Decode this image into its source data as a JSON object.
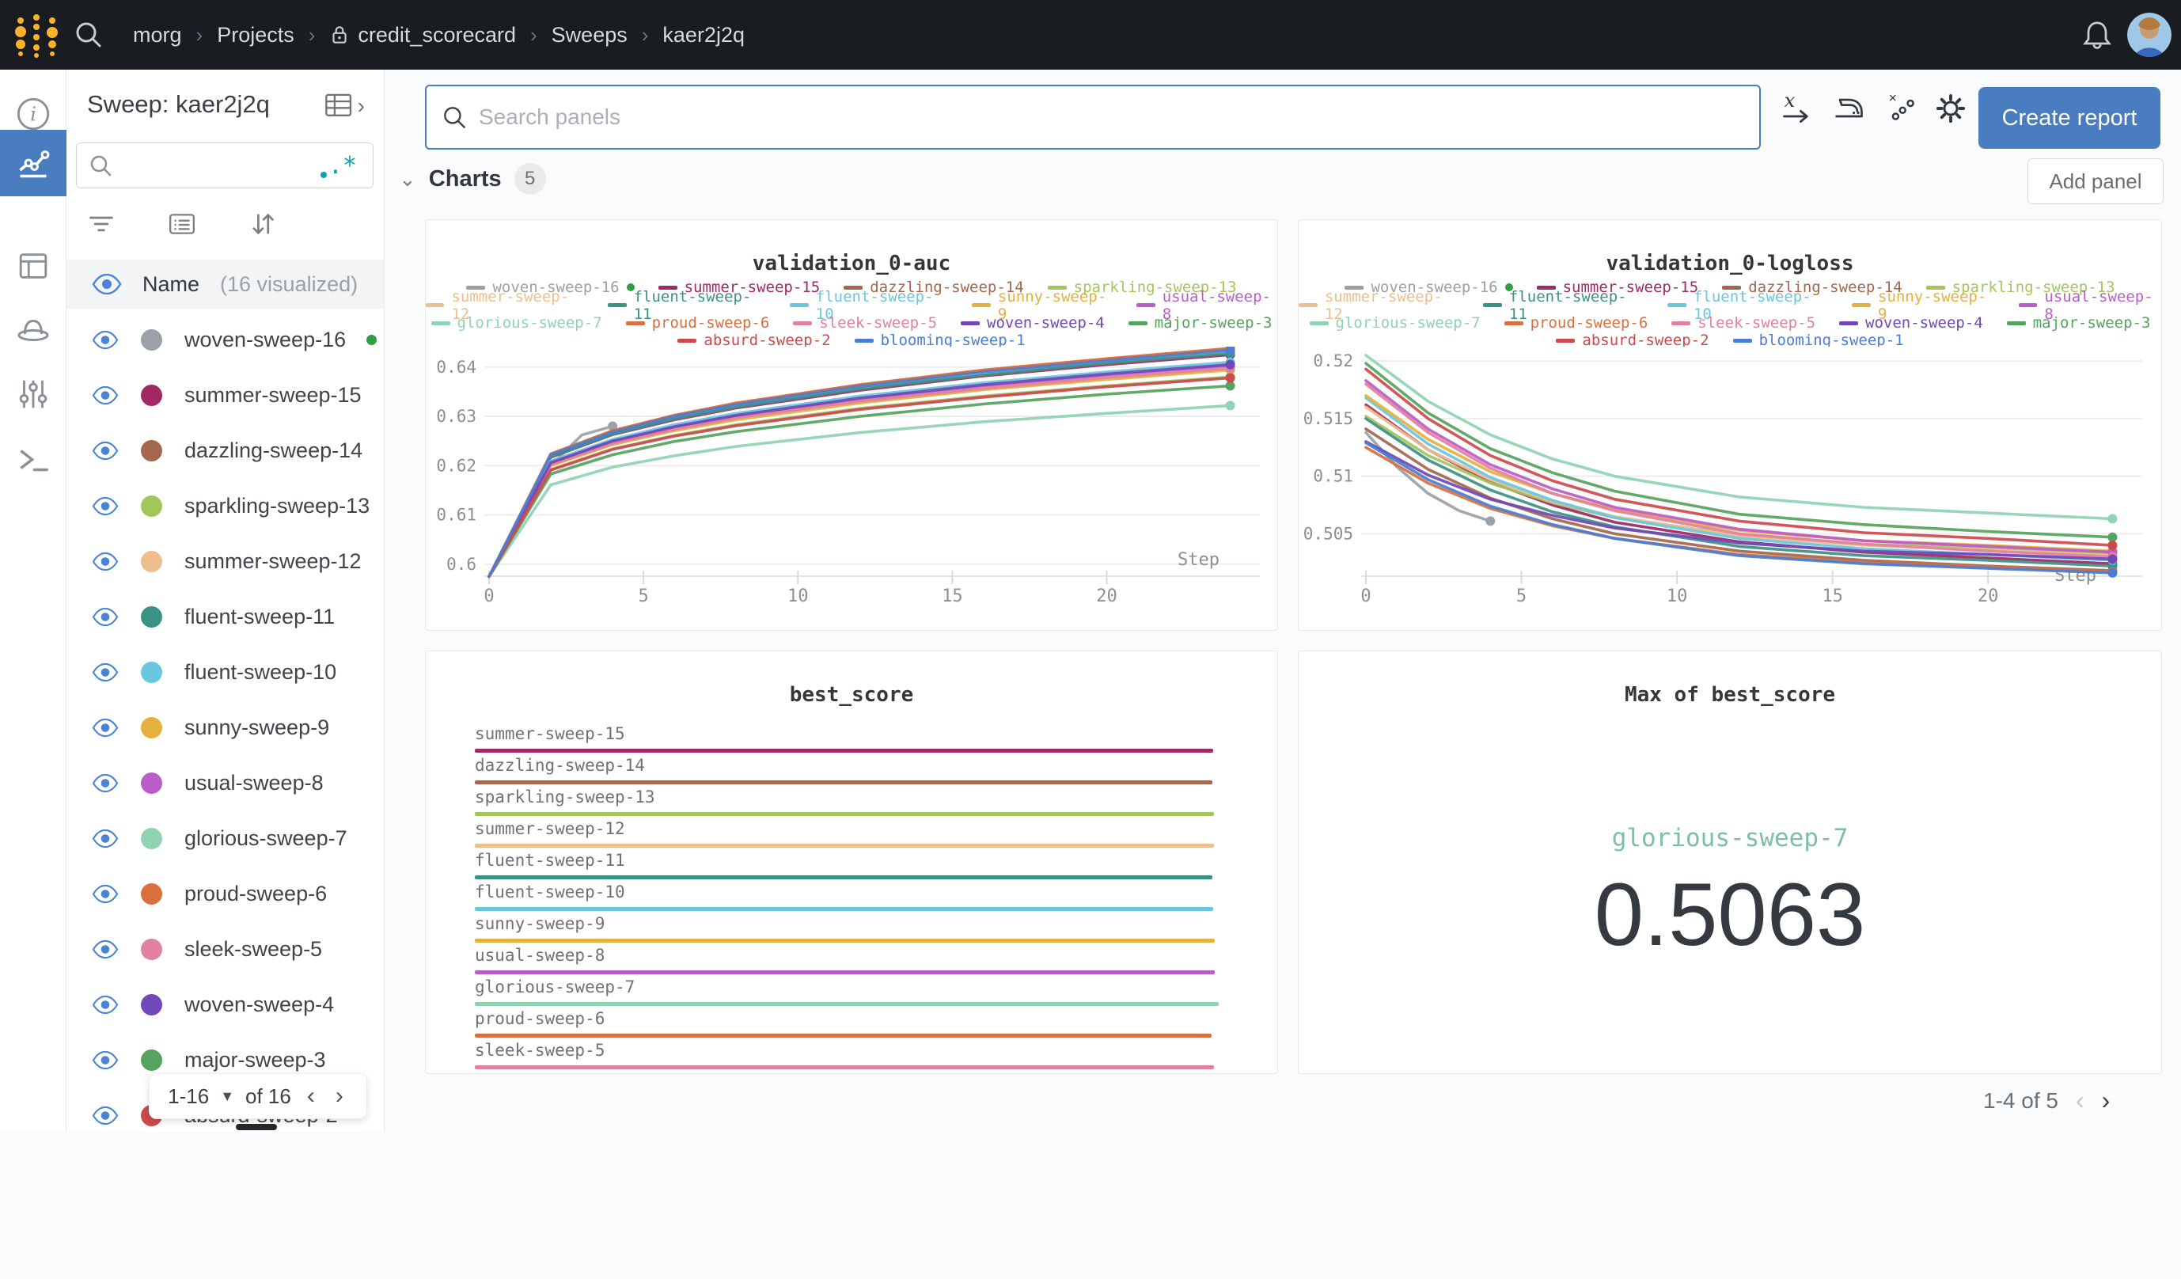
{
  "topbar": {
    "breadcrumb": [
      "morg",
      "Projects",
      "credit_scorecard",
      "Sweeps",
      "kaer2j2q"
    ],
    "lock_on_index": 2
  },
  "left_rail": {
    "items": [
      "overview",
      "charts",
      "table",
      "sweeps",
      "parameters",
      "logs"
    ],
    "active": "charts"
  },
  "sidebar": {
    "title": "Sweep: kaer2j2q",
    "search_placeholder": "",
    "header": {
      "name_label": "Name",
      "visualized_label": "(16 visualized)"
    },
    "runs": [
      {
        "name": "woven-sweep-16",
        "color": "#9aa1a8",
        "running": true
      },
      {
        "name": "summer-sweep-15",
        "color": "#a02963",
        "running": false
      },
      {
        "name": "dazzling-sweep-14",
        "color": "#a3674e",
        "running": false
      },
      {
        "name": "sparkling-sweep-13",
        "color": "#a3c65a",
        "running": false
      },
      {
        "name": "summer-sweep-12",
        "color": "#eebe8e",
        "running": false
      },
      {
        "name": "fluent-sweep-11",
        "color": "#3a9285",
        "running": false
      },
      {
        "name": "fluent-sweep-10",
        "color": "#6bc6e0",
        "running": false
      },
      {
        "name": "sunny-sweep-9",
        "color": "#e4b13f",
        "running": false
      },
      {
        "name": "usual-sweep-8",
        "color": "#bb5dc8",
        "running": false
      },
      {
        "name": "glorious-sweep-7",
        "color": "#90d3b2",
        "running": false
      },
      {
        "name": "proud-sweep-6",
        "color": "#d9703f",
        "running": false
      },
      {
        "name": "sleek-sweep-5",
        "color": "#e2819f",
        "running": false
      },
      {
        "name": "woven-sweep-4",
        "color": "#7048b8",
        "running": false
      },
      {
        "name": "major-sweep-3",
        "color": "#56a25f",
        "running": false
      },
      {
        "name": "absurd-sweep-2",
        "color": "#cd4a4c",
        "running": false
      },
      {
        "name": "blooming-sweep-1",
        "color": "#4a7dd4",
        "running": false
      }
    ],
    "pagination": {
      "range": "1-16",
      "of": "of 16"
    }
  },
  "main": {
    "search": {
      "placeholder": "Search panels"
    },
    "create_report_label": "Create report",
    "section": {
      "label": "Charts",
      "count": "5",
      "add_panel_label": "Add panel"
    },
    "pagination": {
      "text": "1-4 of 5"
    }
  },
  "colors": {
    "accent_blue": "#4a7dc0",
    "running_green": "#2f9e44",
    "logo_gold": "#fcb32b",
    "topbar_bg": "#191c20"
  },
  "chart_data": [
    {
      "type": "line",
      "title": "validation_0-auc",
      "xlabel": "Step",
      "x_ticks": [
        0,
        5,
        10,
        15,
        20
      ],
      "y_ticks": [
        0.6,
        0.61,
        0.62,
        0.63,
        0.64
      ],
      "y_tick_labels": [
        "0.6",
        "0.61",
        "0.62",
        "0.63",
        "0.64"
      ],
      "y_domain": [
        0.595,
        0.6435
      ],
      "x_domain": [
        0,
        24.6
      ],
      "legend_rows": [
        4,
        5,
        5,
        2
      ],
      "series": [
        {
          "name": "woven-sweep-16",
          "x": [
            0,
            1,
            2,
            3,
            4
          ],
          "y": [
            0.5975,
            0.609,
            0.62,
            0.6262,
            0.628
          ]
        },
        {
          "name": "summer-sweep-15",
          "x": [
            0,
            2,
            4,
            6,
            8,
            12,
            16,
            20,
            24
          ],
          "y": [
            0.5975,
            0.6217,
            0.6263,
            0.6293,
            0.6317,
            0.6353,
            0.6382,
            0.6405,
            0.6425
          ]
        },
        {
          "name": "dazzling-sweep-14",
          "x": [
            0,
            2,
            4,
            6,
            8,
            12,
            16,
            20,
            24
          ],
          "y": [
            0.5975,
            0.6223,
            0.627,
            0.6302,
            0.6326,
            0.6364,
            0.6393,
            0.6416,
            0.6437
          ]
        },
        {
          "name": "sparkling-sweep-13",
          "x": [
            0,
            2,
            4,
            6,
            8,
            12,
            16,
            20,
            24
          ],
          "y": [
            0.5975,
            0.6192,
            0.6234,
            0.6261,
            0.6283,
            0.6316,
            0.6341,
            0.6362,
            0.638
          ]
        },
        {
          "name": "summer-sweep-12",
          "x": [
            0,
            2,
            4,
            6,
            8,
            12,
            16,
            20,
            24
          ],
          "y": [
            0.5975,
            0.6201,
            0.6243,
            0.6272,
            0.6294,
            0.6328,
            0.6355,
            0.6376,
            0.6395
          ]
        },
        {
          "name": "fluent-sweep-11",
          "x": [
            0,
            2,
            4,
            6,
            8,
            12,
            16,
            20,
            24
          ],
          "y": [
            0.5975,
            0.6218,
            0.6264,
            0.6295,
            0.6319,
            0.6356,
            0.6384,
            0.6408,
            0.6428
          ]
        },
        {
          "name": "fluent-sweep-10",
          "x": [
            0,
            2,
            4,
            6,
            8,
            12,
            16,
            20,
            24
          ],
          "y": [
            0.5975,
            0.6209,
            0.6253,
            0.6283,
            0.6306,
            0.6341,
            0.6368,
            0.639,
            0.641
          ]
        },
        {
          "name": "sunny-sweep-9",
          "x": [
            0,
            2,
            4,
            6,
            8,
            12,
            16,
            20,
            24
          ],
          "y": [
            0.5975,
            0.62,
            0.6243,
            0.6271,
            0.6293,
            0.6327,
            0.6354,
            0.6375,
            0.6394
          ]
        },
        {
          "name": "usual-sweep-8",
          "x": [
            0,
            2,
            4,
            6,
            8,
            12,
            16,
            20,
            24
          ],
          "y": [
            0.5975,
            0.6204,
            0.6248,
            0.6277,
            0.63,
            0.6334,
            0.6361,
            0.6383,
            0.6402
          ]
        },
        {
          "name": "glorious-sweep-7",
          "x": [
            0,
            2,
            4,
            6,
            8,
            12,
            16,
            20,
            24
          ],
          "y": [
            0.5975,
            0.6161,
            0.6197,
            0.622,
            0.6239,
            0.6267,
            0.6289,
            0.6306,
            0.6322
          ]
        },
        {
          "name": "proud-sweep-6",
          "x": [
            0,
            2,
            4,
            6,
            8,
            12,
            16,
            20,
            24
          ],
          "y": [
            0.5975,
            0.6224,
            0.6271,
            0.6302,
            0.6327,
            0.6364,
            0.6394,
            0.6417,
            0.6438
          ]
        },
        {
          "name": "sleek-sweep-5",
          "x": [
            0,
            2,
            4,
            6,
            8,
            12,
            16,
            20,
            24
          ],
          "y": [
            0.5975,
            0.6202,
            0.6245,
            0.6274,
            0.6297,
            0.6331,
            0.6357,
            0.6379,
            0.6398
          ]
        },
        {
          "name": "woven-sweep-4",
          "x": [
            0,
            2,
            4,
            6,
            8,
            12,
            16,
            20,
            24
          ],
          "y": [
            0.5975,
            0.6206,
            0.625,
            0.6279,
            0.6302,
            0.6337,
            0.6364,
            0.6386,
            0.6405
          ]
        },
        {
          "name": "major-sweep-3",
          "x": [
            0,
            2,
            4,
            6,
            8,
            12,
            16,
            20,
            24
          ],
          "y": [
            0.5975,
            0.6183,
            0.6222,
            0.6249,
            0.6269,
            0.63,
            0.6325,
            0.6345,
            0.6362
          ]
        },
        {
          "name": "absurd-sweep-2",
          "x": [
            0,
            2,
            4,
            6,
            8,
            12,
            16,
            20,
            24
          ],
          "y": [
            0.5975,
            0.6191,
            0.6233,
            0.626,
            0.6281,
            0.6314,
            0.6339,
            0.636,
            0.6378
          ]
        },
        {
          "name": "blooming-sweep-1",
          "x": [
            0,
            2,
            4,
            6,
            8,
            12,
            16,
            20,
            24
          ],
          "y": [
            0.5975,
            0.6222,
            0.6268,
            0.63,
            0.6324,
            0.6361,
            0.639,
            0.6413,
            0.6434
          ]
        }
      ]
    },
    {
      "type": "line",
      "title": "validation_0-logloss",
      "xlabel": "Step",
      "x_ticks": [
        0,
        5,
        10,
        15,
        20
      ],
      "y_ticks": [
        0.505,
        0.51,
        0.515,
        0.52
      ],
      "y_tick_labels": [
        "0.505",
        "0.51",
        "0.515",
        "0.52"
      ],
      "y_domain": [
        0.5007,
        0.5207
      ],
      "x_domain": [
        0,
        24.6
      ],
      "legend_rows": [
        4,
        5,
        5,
        2
      ],
      "series": [
        {
          "name": "woven-sweep-16",
          "x": [
            0,
            1,
            2,
            3,
            4
          ],
          "y": [
            0.5138,
            0.5108,
            0.5085,
            0.507,
            0.5061
          ]
        },
        {
          "name": "summer-sweep-15",
          "x": [
            0,
            2,
            4,
            6,
            8,
            12,
            16,
            20,
            24
          ],
          "y": [
            0.5162,
            0.5123,
            0.5095,
            0.5075,
            0.506,
            0.5043,
            0.5034,
            0.5029,
            0.5024
          ]
        },
        {
          "name": "dazzling-sweep-14",
          "x": [
            0,
            2,
            4,
            6,
            8,
            12,
            16,
            20,
            24
          ],
          "y": [
            0.5141,
            0.5106,
            0.5081,
            0.5063,
            0.505,
            0.5035,
            0.5027,
            0.5022,
            0.5018
          ]
        },
        {
          "name": "sparkling-sweep-13",
          "x": [
            0,
            2,
            4,
            6,
            8,
            12,
            16,
            20,
            24
          ],
          "y": [
            0.5152,
            0.5118,
            0.5094,
            0.5077,
            0.5064,
            0.5049,
            0.5041,
            0.5037,
            0.5033
          ]
        },
        {
          "name": "summer-sweep-12",
          "x": [
            0,
            2,
            4,
            6,
            8,
            12,
            16,
            20,
            24
          ],
          "y": [
            0.516,
            0.5123,
            0.5097,
            0.5078,
            0.5065,
            0.5048,
            0.504,
            0.5036,
            0.5031
          ]
        },
        {
          "name": "fluent-sweep-11",
          "x": [
            0,
            2,
            4,
            6,
            8,
            12,
            16,
            20,
            24
          ],
          "y": [
            0.515,
            0.5114,
            0.5088,
            0.5069,
            0.5056,
            0.5039,
            0.5031,
            0.5027,
            0.5022
          ]
        },
        {
          "name": "fluent-sweep-10",
          "x": [
            0,
            2,
            4,
            6,
            8,
            12,
            16,
            20,
            24
          ],
          "y": [
            0.5168,
            0.5128,
            0.5099,
            0.5079,
            0.5064,
            0.5046,
            0.5037,
            0.5032,
            0.5027
          ]
        },
        {
          "name": "sunny-sweep-9",
          "x": [
            0,
            2,
            4,
            6,
            8,
            12,
            16,
            20,
            24
          ],
          "y": [
            0.517,
            0.5132,
            0.5104,
            0.5085,
            0.5071,
            0.5053,
            0.5044,
            0.504,
            0.5035
          ]
        },
        {
          "name": "usual-sweep-8",
          "x": [
            0,
            2,
            4,
            6,
            8,
            12,
            16,
            20,
            24
          ],
          "y": [
            0.5183,
            0.5141,
            0.511,
            0.5089,
            0.5073,
            0.5054,
            0.5044,
            0.5039,
            0.5034
          ]
        },
        {
          "name": "glorious-sweep-7",
          "x": [
            0,
            2,
            4,
            6,
            8,
            12,
            16,
            20,
            24
          ],
          "y": [
            0.5205,
            0.5165,
            0.5136,
            0.5115,
            0.51,
            0.5082,
            0.5073,
            0.5068,
            0.5063
          ]
        },
        {
          "name": "proud-sweep-6",
          "x": [
            0,
            2,
            4,
            6,
            8,
            12,
            16,
            20,
            24
          ],
          "y": [
            0.5125,
            0.5094,
            0.5072,
            0.5057,
            0.5046,
            0.5032,
            0.5025,
            0.5021,
            0.5017
          ]
        },
        {
          "name": "sleek-sweep-5",
          "x": [
            0,
            2,
            4,
            6,
            8,
            12,
            16,
            20,
            24
          ],
          "y": [
            0.518,
            0.5138,
            0.5107,
            0.5085,
            0.507,
            0.505,
            0.5041,
            0.5035,
            0.503
          ]
        },
        {
          "name": "woven-sweep-4",
          "x": [
            0,
            2,
            4,
            6,
            8,
            12,
            16,
            20,
            24
          ],
          "y": [
            0.513,
            0.5101,
            0.508,
            0.5066,
            0.5055,
            0.5042,
            0.5035,
            0.5032,
            0.5028
          ]
        },
        {
          "name": "major-sweep-3",
          "x": [
            0,
            2,
            4,
            6,
            8,
            12,
            16,
            20,
            24
          ],
          "y": [
            0.5198,
            0.5155,
            0.5124,
            0.5103,
            0.5087,
            0.5067,
            0.5058,
            0.5052,
            0.5047
          ]
        },
        {
          "name": "absurd-sweep-2",
          "x": [
            0,
            2,
            4,
            6,
            8,
            12,
            16,
            20,
            24
          ],
          "y": [
            0.5193,
            0.515,
            0.5118,
            0.5096,
            0.508,
            0.5061,
            0.5051,
            0.5046,
            0.504
          ]
        },
        {
          "name": "blooming-sweep-1",
          "x": [
            0,
            2,
            4,
            6,
            8,
            12,
            16,
            20,
            24
          ],
          "y": [
            0.5129,
            0.5097,
            0.5074,
            0.5058,
            0.5046,
            0.5031,
            0.5024,
            0.502,
            0.5016
          ]
        }
      ]
    },
    {
      "type": "bar",
      "title": "best_score",
      "categories": [
        "summer-sweep-15",
        "dazzling-sweep-14",
        "sparkling-sweep-13",
        "summer-sweep-12",
        "fluent-sweep-11",
        "fluent-sweep-10",
        "sunny-sweep-9",
        "usual-sweep-8",
        "glorious-sweep-7",
        "proud-sweep-6",
        "sleek-sweep-5"
      ],
      "values": [
        0.5024,
        0.5018,
        0.5033,
        0.5031,
        0.5022,
        0.5027,
        0.5035,
        0.5034,
        0.5063,
        0.5017,
        0.503
      ],
      "xlim": [
        0,
        0.5063
      ]
    },
    {
      "type": "scalar",
      "title": "Max of best_score",
      "run": "glorious-sweep-7",
      "value": "0.5063",
      "run_color": "#7cbfa5"
    }
  ]
}
